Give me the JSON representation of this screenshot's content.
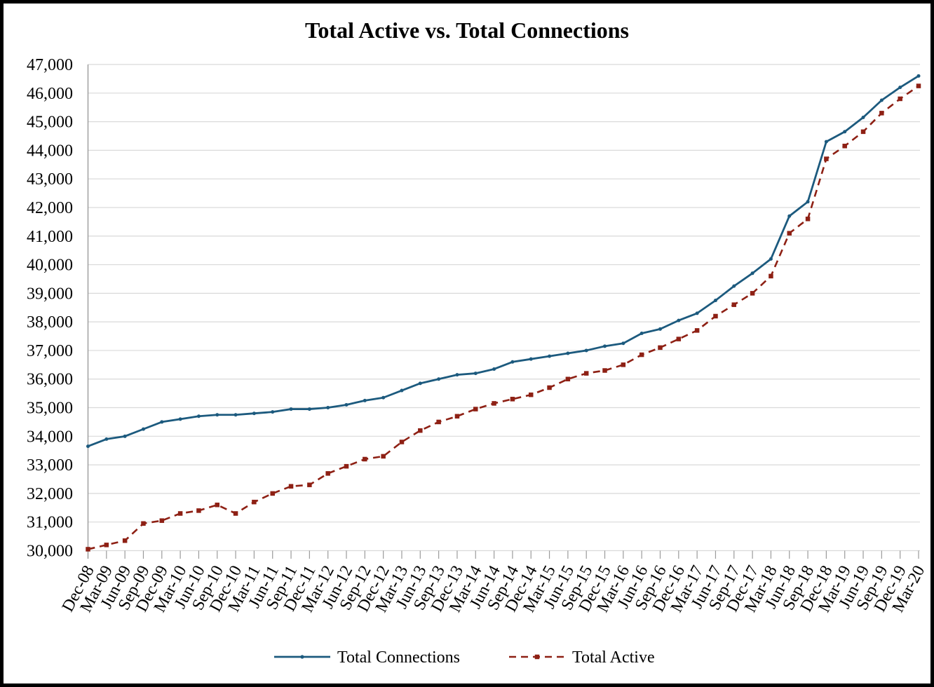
{
  "chart_data": {
    "type": "line",
    "title": "Total Active vs. Total Connections",
    "xlabel": "",
    "ylabel": "",
    "ylim": [
      30000,
      47000
    ],
    "y_ticks": [
      30000,
      31000,
      32000,
      33000,
      34000,
      35000,
      36000,
      37000,
      38000,
      39000,
      40000,
      41000,
      42000,
      43000,
      44000,
      45000,
      46000,
      47000
    ],
    "grid": "horizontal",
    "legend_position": "bottom",
    "colors": {
      "grid": "#D9D9D9",
      "axis": "#9B9B9B"
    },
    "x_labels": [
      "Dec-08",
      "Mar-09",
      "Jun-09",
      "Sep-09",
      "Dec-09",
      "Mar-10",
      "Jun-10",
      "Sep-10",
      "Dec-10",
      "Mar-11",
      "Jun-11",
      "Sep-11",
      "Dec-11",
      "Mar-12",
      "Jun-12",
      "Sep-12",
      "Dec-12",
      "Mar-13",
      "Jun-13",
      "Sep-13",
      "Dec-13",
      "Mar-14",
      "Jun-14",
      "Sep-14",
      "Dec-14",
      "Mar-15",
      "Jun-15",
      "Sep-15",
      "Dec-15",
      "Mar-16",
      "Jun-16",
      "Sep-16",
      "Dec-16",
      "Mar-17",
      "Jun-17",
      "Sep-17",
      "Dec-17",
      "Mar-18",
      "Jun-18",
      "Sep-18",
      "Dec-18",
      "Mar-19",
      "Jun-19",
      "Sep-19",
      "Dec-19",
      "Mar-20"
    ],
    "series": [
      {
        "name": "Total Connections",
        "color": "#1C5A7E",
        "style": "solid",
        "marker": "dot",
        "values": [
          33650,
          33900,
          34000,
          34250,
          34500,
          34600,
          34700,
          34750,
          34750,
          34800,
          34850,
          34950,
          34950,
          35000,
          35100,
          35250,
          35350,
          35600,
          35850,
          36000,
          36150,
          36200,
          36350,
          36600,
          36700,
          36800,
          36900,
          37000,
          37150,
          37250,
          37600,
          37750,
          38050,
          38300,
          38750,
          39250,
          39700,
          40200,
          41700,
          42200,
          44300,
          44650,
          45150,
          45750,
          46200,
          46600
        ]
      },
      {
        "name": "Total Active",
        "color": "#8E2014",
        "style": "dashed",
        "marker": "square",
        "values": [
          30050,
          30200,
          30350,
          30950,
          31050,
          31300,
          31400,
          31600,
          31300,
          31700,
          32000,
          32250,
          32300,
          32700,
          32950,
          33200,
          33300,
          33800,
          34200,
          34500,
          34700,
          34950,
          35150,
          35300,
          35450,
          35700,
          36000,
          36200,
          36300,
          36500,
          36850,
          37100,
          37400,
          37700,
          38200,
          38600,
          39000,
          39600,
          41100,
          41600,
          43700,
          44150,
          44650,
          45300,
          45800,
          46250
        ]
      }
    ]
  }
}
